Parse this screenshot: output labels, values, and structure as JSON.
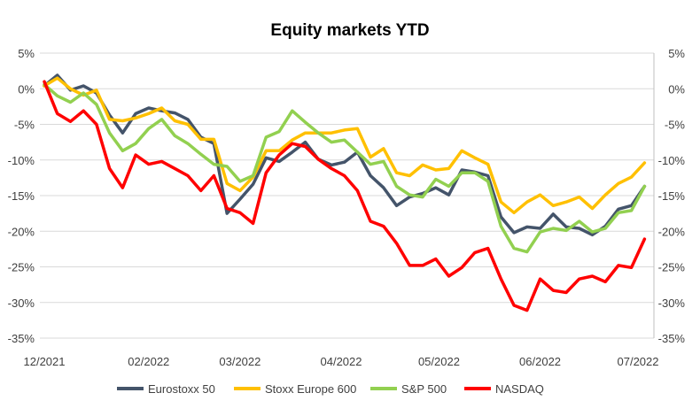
{
  "chart_data": {
    "type": "line",
    "title": "Equity markets YTD",
    "xlabel": "",
    "ylabel": "",
    "ylim": [
      -35,
      5
    ],
    "y_ticks": [
      "5%",
      "0%",
      "-5%",
      "-10%",
      "-15%",
      "-20%",
      "-25%",
      "-30%",
      "-35%"
    ],
    "y_tick_values": [
      5,
      0,
      -5,
      -10,
      -15,
      -20,
      -25,
      -30,
      -35
    ],
    "y_axis_both_sides": true,
    "x_ticks": [
      "12/2021",
      "02/2022",
      "03/2022",
      "04/2022",
      "05/2022",
      "06/2022",
      "07/2022"
    ],
    "x_tick_dates": [
      "2021-12-31",
      "2022-02-01",
      "2022-03-01",
      "2022-04-01",
      "2022-05-01",
      "2022-06-01",
      "2022-07-01"
    ],
    "xlim": [
      "2021-12-31",
      "2022-07-01"
    ],
    "grid": "horizontal",
    "legend_position": "bottom",
    "x": [
      "2021-12-31",
      "2022-01-04",
      "2022-01-08",
      "2022-01-12",
      "2022-01-16",
      "2022-01-20",
      "2022-01-24",
      "2022-01-28",
      "2022-02-01",
      "2022-02-05",
      "2022-02-09",
      "2022-02-13",
      "2022-02-17",
      "2022-02-21",
      "2022-02-25",
      "2022-03-01",
      "2022-03-05",
      "2022-03-09",
      "2022-03-13",
      "2022-03-17",
      "2022-03-21",
      "2022-03-25",
      "2022-03-29",
      "2022-04-02",
      "2022-04-06",
      "2022-04-10",
      "2022-04-14",
      "2022-04-18",
      "2022-04-22",
      "2022-04-26",
      "2022-04-30",
      "2022-05-04",
      "2022-05-08",
      "2022-05-12",
      "2022-05-16",
      "2022-05-20",
      "2022-05-24",
      "2022-05-28",
      "2022-06-01",
      "2022-06-05",
      "2022-06-09",
      "2022-06-13",
      "2022-06-17",
      "2022-06-21",
      "2022-06-25",
      "2022-06-29",
      "2022-07-03"
    ],
    "series": [
      {
        "name": "Eurostoxx 50",
        "color": "#44546A",
        "values": [
          0.4,
          1.9,
          -0.2,
          0.4,
          -0.6,
          -3.7,
          -6.2,
          -3.5,
          -2.7,
          -3.1,
          -3.4,
          -4.3,
          -6.8,
          -7.7,
          -17.5,
          -15.5,
          -13.4,
          -9.7,
          -10.2,
          -8.9,
          -7.5,
          -9.9,
          -10.7,
          -10.3,
          -8.9,
          -12.2,
          -13.9,
          -16.4,
          -15.2,
          -14.7,
          -13.9,
          -14.9,
          -11.4,
          -11.7,
          -12.2,
          -18,
          -20.2,
          -19.4,
          -19.6,
          -17.6,
          -19.4,
          -19.6,
          -20.5,
          -19.3,
          -16.9,
          -16.4,
          -13.7
        ]
      },
      {
        "name": "Stoxx Europe 600",
        "color": "#FFC000",
        "values": [
          0.4,
          1.5,
          0,
          -0.9,
          -0.2,
          -4.3,
          -4.5,
          -4.1,
          -3.5,
          -2.7,
          -4.5,
          -5,
          -7.1,
          -7.1,
          -13.3,
          -14.3,
          -12.4,
          -8.7,
          -8.7,
          -7.2,
          -6.2,
          -6.2,
          -6.2,
          -5.8,
          -5.6,
          -9.6,
          -8.4,
          -11.8,
          -12.2,
          -10.7,
          -11.4,
          -11.2,
          -8.7,
          -9.7,
          -10.6,
          -15.9,
          -17.4,
          -15.9,
          -14.9,
          -16.4,
          -15.9,
          -15.2,
          -16.8,
          -14.9,
          -13.3,
          -12.4,
          -10.4
        ]
      },
      {
        "name": "S&P 500",
        "color": "#92D050",
        "values": [
          0.6,
          -1,
          -1.9,
          -0.6,
          -2.2,
          -6.2,
          -8.7,
          -7.7,
          -5.6,
          -4.3,
          -6.6,
          -7.7,
          -9.2,
          -10.6,
          -10.9,
          -13,
          -12.2,
          -6.8,
          -6,
          -3.1,
          -4.7,
          -6.2,
          -7.5,
          -7.2,
          -8.9,
          -10.6,
          -10.2,
          -13.7,
          -14.9,
          -15.2,
          -12.7,
          -13.7,
          -11.8,
          -11.8,
          -13,
          -19.3,
          -22.4,
          -22.9,
          -20.1,
          -19.6,
          -19.9,
          -18.6,
          -20.1,
          -19.6,
          -17.4,
          -17.1,
          -13.7
        ]
      },
      {
        "name": "NASDAQ",
        "color": "#FF0000",
        "values": [
          1,
          -3.5,
          -4.6,
          -3.1,
          -5,
          -11.2,
          -13.9,
          -9.3,
          -10.6,
          -10.2,
          -11.2,
          -12.2,
          -14.3,
          -12.2,
          -16.8,
          -17.4,
          -18.9,
          -11.8,
          -9.3,
          -7.7,
          -8.1,
          -9.9,
          -11.2,
          -12.2,
          -14.3,
          -18.6,
          -19.3,
          -21.7,
          -24.8,
          -24.8,
          -23.9,
          -26.3,
          -25.1,
          -23,
          -22.4,
          -26.7,
          -30.4,
          -31.1,
          -26.7,
          -28.3,
          -28.6,
          -26.7,
          -26.3,
          -27.1,
          -24.8,
          -25.1,
          -21.1
        ]
      }
    ]
  }
}
